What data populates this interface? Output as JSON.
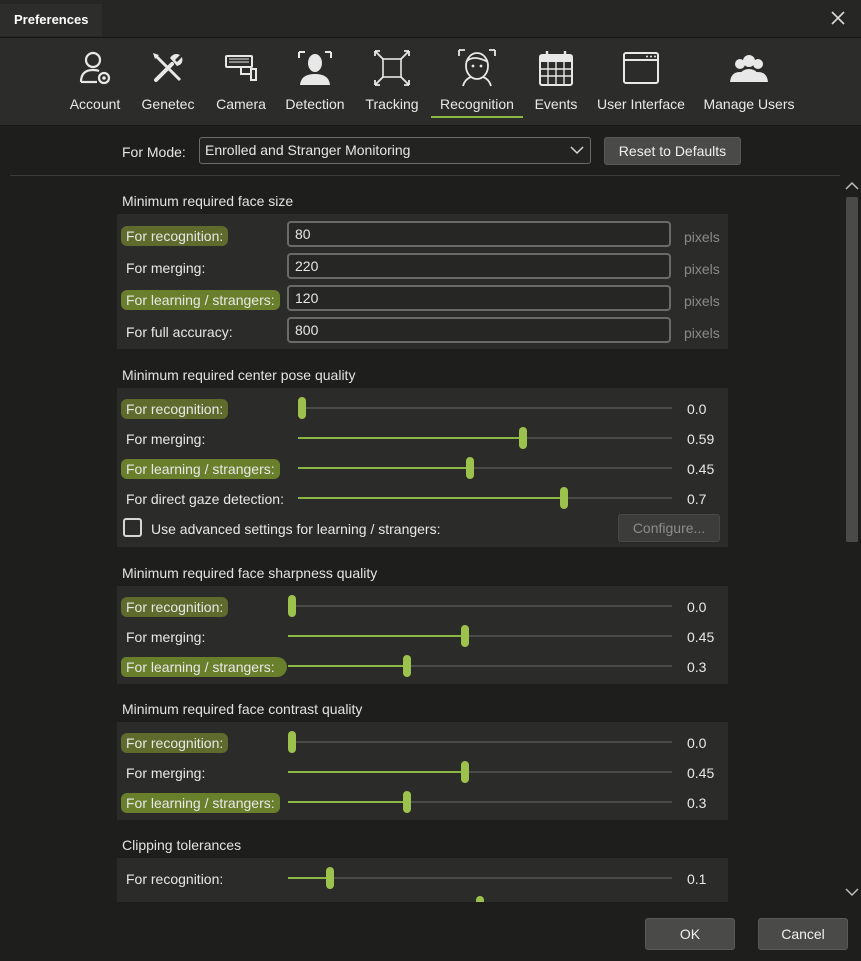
{
  "window": {
    "title": "Preferences"
  },
  "tabs": [
    {
      "label": "Account",
      "icon": "account-gear-icon"
    },
    {
      "label": "Genetec",
      "icon": "tools-icon"
    },
    {
      "label": "Camera",
      "icon": "camera-icon"
    },
    {
      "label": "Detection",
      "icon": "detection-icon"
    },
    {
      "label": "Tracking",
      "icon": "tracking-icon"
    },
    {
      "label": "Recognition",
      "icon": "recognition-icon",
      "active": true
    },
    {
      "label": "Events",
      "icon": "calendar-icon"
    },
    {
      "label": "User Interface",
      "icon": "window-icon"
    },
    {
      "label": "Manage Users",
      "icon": "users-icon"
    }
  ],
  "mode": {
    "label": "For Mode:",
    "selected": "Enrolled and Stranger Monitoring",
    "reset_label": "Reset to Defaults"
  },
  "face_size": {
    "title": "Minimum required face size",
    "rows": [
      {
        "label": "For recognition:",
        "value": "80",
        "unit": "pixels"
      },
      {
        "label": "For merging:",
        "value": "220",
        "unit": "pixels"
      },
      {
        "label": "For learning / strangers:",
        "value": "120",
        "unit": "pixels"
      },
      {
        "label": "For full accuracy:",
        "value": "800",
        "unit": "pixels"
      }
    ]
  },
  "pose": {
    "title": "Minimum required center pose quality",
    "rows": [
      {
        "label": "For recognition:",
        "value": "0.0",
        "level": 0.0
      },
      {
        "label": "For merging:",
        "value": "0.59",
        "level": 0.59
      },
      {
        "label": "For learning / strangers:",
        "value": "0.45",
        "level": 0.45
      },
      {
        "label": "For direct gaze detection:",
        "value": "0.7",
        "level": 0.7
      }
    ],
    "advanced_label": "Use advanced settings for learning / strangers:",
    "configure_label": "Configure..."
  },
  "sharpness": {
    "title": "Minimum required face sharpness quality",
    "rows": [
      {
        "label": "For recognition:",
        "value": "0.0",
        "level": 0.0
      },
      {
        "label": "For merging:",
        "value": "0.45",
        "level": 0.45
      },
      {
        "label": "For learning / strangers:",
        "value": "0.3",
        "level": 0.3
      }
    ]
  },
  "contrast": {
    "title": "Minimum required face contrast quality",
    "rows": [
      {
        "label": "For recognition:",
        "value": "0.0",
        "level": 0.0
      },
      {
        "label": "For merging:",
        "value": "0.45",
        "level": 0.45
      },
      {
        "label": "For learning / strangers:",
        "value": "0.3",
        "level": 0.3
      }
    ]
  },
  "clipping": {
    "title": "Clipping tolerances",
    "rows": [
      {
        "label": "For recognition:",
        "value": "0.1",
        "level": 0.1
      }
    ]
  },
  "footer": {
    "ok_label": "OK",
    "cancel_label": "Cancel"
  },
  "colors": {
    "accent": "#8bb843",
    "highlight": "#5e6b2c",
    "background": "#1e1f1d"
  }
}
